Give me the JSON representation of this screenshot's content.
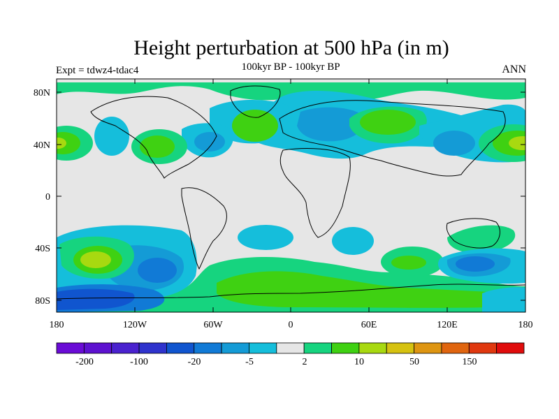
{
  "title": "Height perturbation at 500 hPa (in m)",
  "subtitle": "100kyr BP - 100kyr BP",
  "left_label": "Expt = tdwz4-tdac4",
  "right_label": "ANN",
  "lat_ticks": [
    "80N",
    "40N",
    "0",
    "40S",
    "80S"
  ],
  "lon_ticks": [
    "180",
    "120W",
    "60W",
    "0",
    "60E",
    "120E",
    "180"
  ],
  "colorbar": {
    "colors": [
      "#6a0cd6",
      "#5d12d0",
      "#4a22cf",
      "#2f33cd",
      "#1055cf",
      "#117ad6",
      "#149bd6",
      "#15bedb",
      "#e6e6e6",
      "#16d47f",
      "#3fd112",
      "#a8d910",
      "#d6c210",
      "#de9511",
      "#e0650f",
      "#e0380f",
      "#e00c0c"
    ],
    "labels": [
      "-200",
      "-100",
      "-20",
      "-5",
      "2",
      "10",
      "50",
      "150"
    ]
  },
  "colors": {
    "neutral": "#e6e6e6",
    "light_blue": "#15bedb",
    "mid_blue": "#149bd6",
    "blue": "#117ad6",
    "teal_green": "#16d47f",
    "green": "#3fd112",
    "yellow_green": "#a8d910"
  }
}
